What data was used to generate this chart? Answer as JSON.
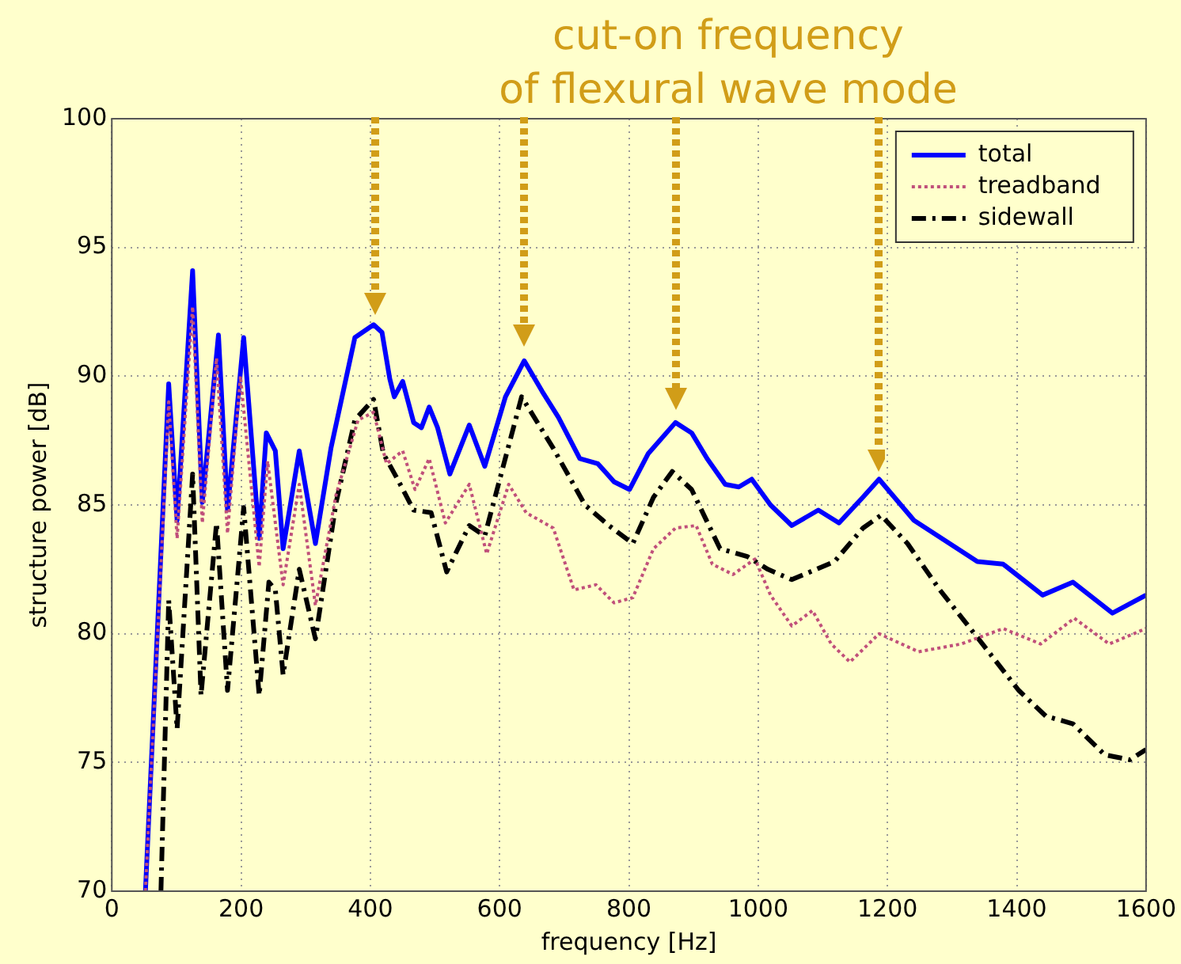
{
  "chart_data": {
    "type": "line",
    "xlabel": "frequency [Hz]",
    "ylabel": "structure power [dB]",
    "xlim": [
      0,
      1600
    ],
    "xticks": [
      0,
      200,
      400,
      600,
      800,
      1000,
      1200,
      1400,
      1600
    ],
    "ylim": [
      70,
      100
    ],
    "yticks": [
      70,
      75,
      80,
      85,
      90,
      95,
      100
    ],
    "grid": true,
    "legend": "top right",
    "annotations": [
      "cut-on frequency\nof flexural wave mode"
    ],
    "series": [
      {
        "name": "total",
        "color": "#0000ff",
        "line_style": "solid",
        "x": [
          52,
          88,
          101,
          125,
          140,
          165,
          179,
          204,
          228,
          239,
          253,
          265,
          290,
          315,
          339,
          376,
          405,
          418,
          430,
          437,
          450,
          467,
          479,
          491,
          504,
          523,
          553,
          577,
          609,
          638,
          666,
          691,
          724,
          752,
          777,
          801,
          830,
          872,
          897,
          921,
          949,
          970,
          990,
          1019,
          1052,
          1093,
          1125,
          1162,
          1187,
          1241,
          1290,
          1339,
          1379,
          1440,
          1487,
          1548,
          1600
        ],
        "values": [
          70,
          89.7,
          84.4,
          94.1,
          85.1,
          91.6,
          84.8,
          91.5,
          83.7,
          87.8,
          87.1,
          83.3,
          87.1,
          83.5,
          87.2,
          91.5,
          92.0,
          91.7,
          89.9,
          89.2,
          89.8,
          88.2,
          88.0,
          88.8,
          88.0,
          86.2,
          88.1,
          86.5,
          89.2,
          90.6,
          89.4,
          88.4,
          86.8,
          86.6,
          85.9,
          85.6,
          87.0,
          88.2,
          87.8,
          86.8,
          85.8,
          85.7,
          86.0,
          85.0,
          84.2,
          84.8,
          84.3,
          85.3,
          86.0,
          84.4,
          83.6,
          82.8,
          82.7,
          81.5,
          82.0,
          80.8,
          81.5
        ]
      },
      {
        "name": "treadband",
        "color": "#c0507a",
        "line_style": "dotted",
        "x": [
          52,
          88,
          101,
          125,
          140,
          162,
          179,
          199,
          228,
          241,
          265,
          290,
          315,
          347,
          381,
          405,
          425,
          450,
          469,
          491,
          516,
          553,
          580,
          614,
          641,
          683,
          715,
          749,
          777,
          806,
          838,
          872,
          904,
          929,
          961,
          995,
          1019,
          1052,
          1084,
          1113,
          1142,
          1187,
          1248,
          1314,
          1379,
          1437,
          1489,
          1543,
          1600
        ],
        "values": [
          70,
          89.0,
          83.7,
          92.7,
          84.3,
          90.7,
          83.9,
          90.0,
          82.6,
          86.7,
          81.9,
          85.8,
          81.1,
          85.4,
          88.3,
          88.6,
          86.6,
          87.1,
          85.6,
          86.8,
          84.3,
          85.8,
          83.1,
          85.8,
          84.7,
          84.1,
          81.7,
          81.9,
          81.2,
          81.4,
          83.3,
          84.1,
          84.2,
          82.7,
          82.3,
          82.9,
          81.5,
          80.3,
          80.9,
          79.6,
          78.9,
          80.0,
          79.3,
          79.6,
          80.2,
          79.6,
          80.6,
          79.6,
          80.2
        ]
      },
      {
        "name": "sidewall",
        "color": "#000000",
        "line_style": "dashdot",
        "x": [
          76,
          88,
          101,
          125,
          138,
          162,
          179,
          204,
          228,
          243,
          253,
          265,
          290,
          315,
          347,
          376,
          405,
          420,
          442,
          467,
          494,
          518,
          553,
          577,
          634,
          683,
          732,
          769,
          806,
          838,
          867,
          897,
          941,
          983,
          1015,
          1052,
          1118,
          1162,
          1190,
          1231,
          1281,
          1347,
          1403,
          1445,
          1487,
          1536,
          1575,
          1600
        ],
        "values": [
          70,
          81.3,
          76.3,
          86.2,
          77.6,
          84.3,
          77.8,
          84.9,
          77.6,
          82.0,
          81.7,
          78.4,
          82.5,
          79.8,
          85.1,
          88.3,
          89.1,
          87.0,
          86.0,
          84.8,
          84.7,
          82.4,
          84.2,
          83.8,
          89.2,
          87.2,
          85.0,
          84.2,
          83.5,
          85.3,
          86.3,
          85.6,
          83.3,
          83.0,
          82.5,
          82.1,
          82.8,
          84.1,
          84.6,
          83.5,
          81.7,
          79.6,
          77.8,
          76.8,
          76.5,
          75.3,
          75.1,
          75.5
        ]
      }
    ]
  }
}
